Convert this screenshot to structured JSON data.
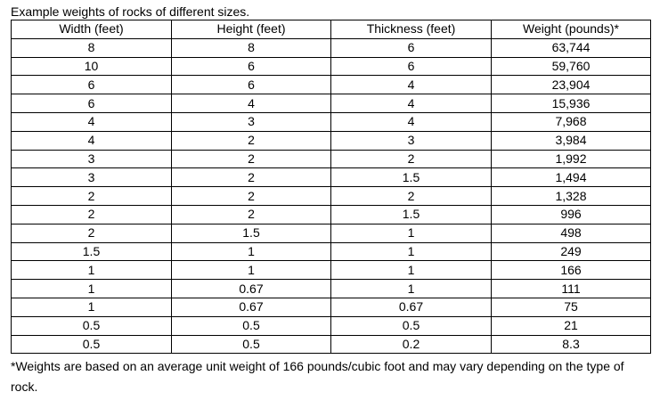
{
  "caption": "Example weights of rocks of different sizes.",
  "table": {
    "headers": [
      "Width (feet)",
      "Height (feet)",
      "Thickness (feet)",
      "Weight (pounds)*"
    ],
    "rows": [
      [
        "8",
        "8",
        "6",
        "63,744"
      ],
      [
        "10",
        "6",
        "6",
        "59,760"
      ],
      [
        "6",
        "6",
        "4",
        "23,904"
      ],
      [
        "6",
        "4",
        "4",
        "15,936"
      ],
      [
        "4",
        "3",
        "4",
        "7,968"
      ],
      [
        "4",
        "2",
        "3",
        "3,984"
      ],
      [
        "3",
        "2",
        "2",
        "1,992"
      ],
      [
        "3",
        "2",
        "1.5",
        "1,494"
      ],
      [
        "2",
        "2",
        "2",
        "1,328"
      ],
      [
        "2",
        "2",
        "1.5",
        "996"
      ],
      [
        "2",
        "1.5",
        "1",
        "498"
      ],
      [
        "1.5",
        "1",
        "1",
        "249"
      ],
      [
        "1",
        "1",
        "1",
        "166"
      ],
      [
        "1",
        "0.67",
        "1",
        "111"
      ],
      [
        "1",
        "0.67",
        "0.67",
        "75"
      ],
      [
        "0.5",
        "0.5",
        "0.5",
        "21"
      ],
      [
        "0.5",
        "0.5",
        "0.2",
        "8.3"
      ]
    ]
  },
  "footnote": "*Weights are based on an average unit weight of 166 pounds/cubic foot and may vary depending on the type of rock."
}
